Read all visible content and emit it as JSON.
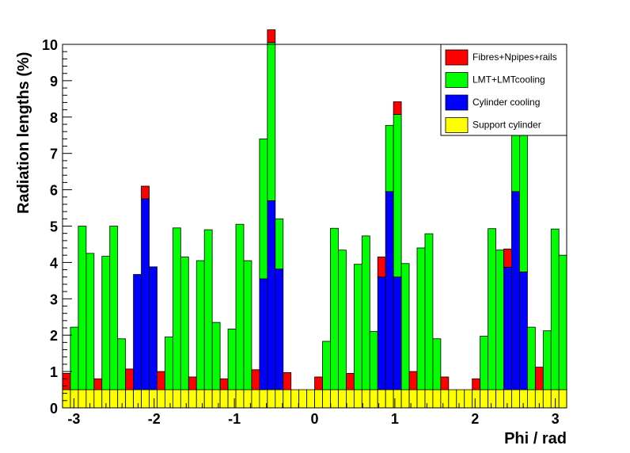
{
  "chart_data": {
    "type": "bar",
    "subtype": "stacked-histogram",
    "xlabel": "Phi / rad",
    "ylabel": "Radiation lengths (%)",
    "xlim": [
      -3.1416,
      3.1416
    ],
    "ylim": [
      0,
      10
    ],
    "bin_width": 0.0982,
    "x_ticks": [
      -3,
      -2,
      -1,
      0,
      1,
      2,
      3
    ],
    "y_ticks": [
      0,
      1,
      2,
      3,
      4,
      5,
      6,
      7,
      8,
      9,
      10
    ],
    "legend": {
      "position": "top-right",
      "entries": [
        "Fibres+Npipes+rails",
        "LMT+LMTcooling",
        "Cylinder cooling",
        "Support cylinder"
      ]
    },
    "series": [
      {
        "name": "Support cylinder",
        "color": "#ffff00",
        "values": [
          0.5,
          0.5,
          0.5,
          0.5,
          0.5,
          0.5,
          0.5,
          0.5,
          0.5,
          0.5,
          0.5,
          0.5,
          0.5,
          0.5,
          0.5,
          0.5,
          0.5,
          0.5,
          0.5,
          0.5,
          0.5,
          0.5,
          0.5,
          0.5,
          0.5,
          0.5,
          0.5,
          0.5,
          0.5,
          0.5,
          0.5,
          0.5,
          0.5,
          0.5,
          0.5,
          0.5,
          0.5,
          0.5,
          0.5,
          0.5,
          0.5,
          0.5,
          0.5,
          0.5,
          0.5,
          0.5,
          0.5,
          0.5,
          0.5,
          0.5,
          0.5,
          0.5,
          0.5,
          0.5,
          0.5,
          0.5,
          0.5,
          0.5,
          0.5,
          0.5,
          0.5,
          0.5,
          0.5,
          0.5
        ]
      },
      {
        "name": "Cylinder cooling",
        "color": "#0000ff",
        "values": [
          0,
          0,
          0,
          0,
          0,
          0,
          0,
          0,
          0,
          3.17,
          5.25,
          3.38,
          0,
          0,
          0,
          0,
          0,
          0,
          0,
          0,
          0,
          0,
          0,
          0,
          0,
          3.05,
          5.2,
          3.32,
          0,
          0,
          0,
          0,
          0,
          0,
          0,
          0,
          0,
          0,
          0,
          0,
          3.1,
          5.45,
          3.1,
          0,
          0,
          0,
          0,
          0,
          0,
          0,
          0,
          0,
          0,
          0,
          0,
          0,
          3.37,
          5.45,
          3.24,
          0,
          0,
          0,
          0,
          0
        ]
      },
      {
        "name": "LMT+LMTcooling",
        "color": "#00ff00",
        "values": [
          0,
          1.72,
          4.5,
          3.75,
          0,
          3.67,
          4.5,
          1.4,
          0,
          0,
          0,
          0,
          0,
          1.45,
          4.45,
          3.65,
          0,
          3.55,
          4.4,
          1.85,
          0,
          1.67,
          4.55,
          3.55,
          0,
          3.85,
          4.35,
          1.38,
          0,
          0,
          0,
          0,
          0,
          1.33,
          4.44,
          3.84,
          0,
          3.45,
          4.23,
          1.6,
          0,
          1.82,
          4.47,
          3.47,
          0,
          3.9,
          4.29,
          1.4,
          0,
          0,
          0,
          0,
          0,
          1.47,
          4.43,
          3.84,
          0,
          3.65,
          4.61,
          1.72,
          0,
          1.62,
          4.42,
          3.7
        ]
      },
      {
        "name": "Fibres+Npipes+rails",
        "color": "#ff0000",
        "values": [
          0.45,
          0,
          0,
          0,
          0.3,
          0,
          0,
          0,
          0.57,
          0,
          0.35,
          0,
          0.5,
          0,
          0,
          0,
          0.35,
          0,
          0,
          0,
          0.3,
          0,
          0,
          0,
          0.55,
          0,
          0.35,
          0,
          0.47,
          0,
          0,
          0,
          0.35,
          0,
          0,
          0,
          0.45,
          0,
          0,
          0,
          0.55,
          0,
          0.35,
          0,
          0.5,
          0,
          0,
          0,
          0.35,
          0,
          0,
          0,
          0.3,
          0,
          0,
          0,
          0.5,
          0,
          0.37,
          0,
          0.62,
          0,
          0,
          0
        ]
      }
    ]
  }
}
